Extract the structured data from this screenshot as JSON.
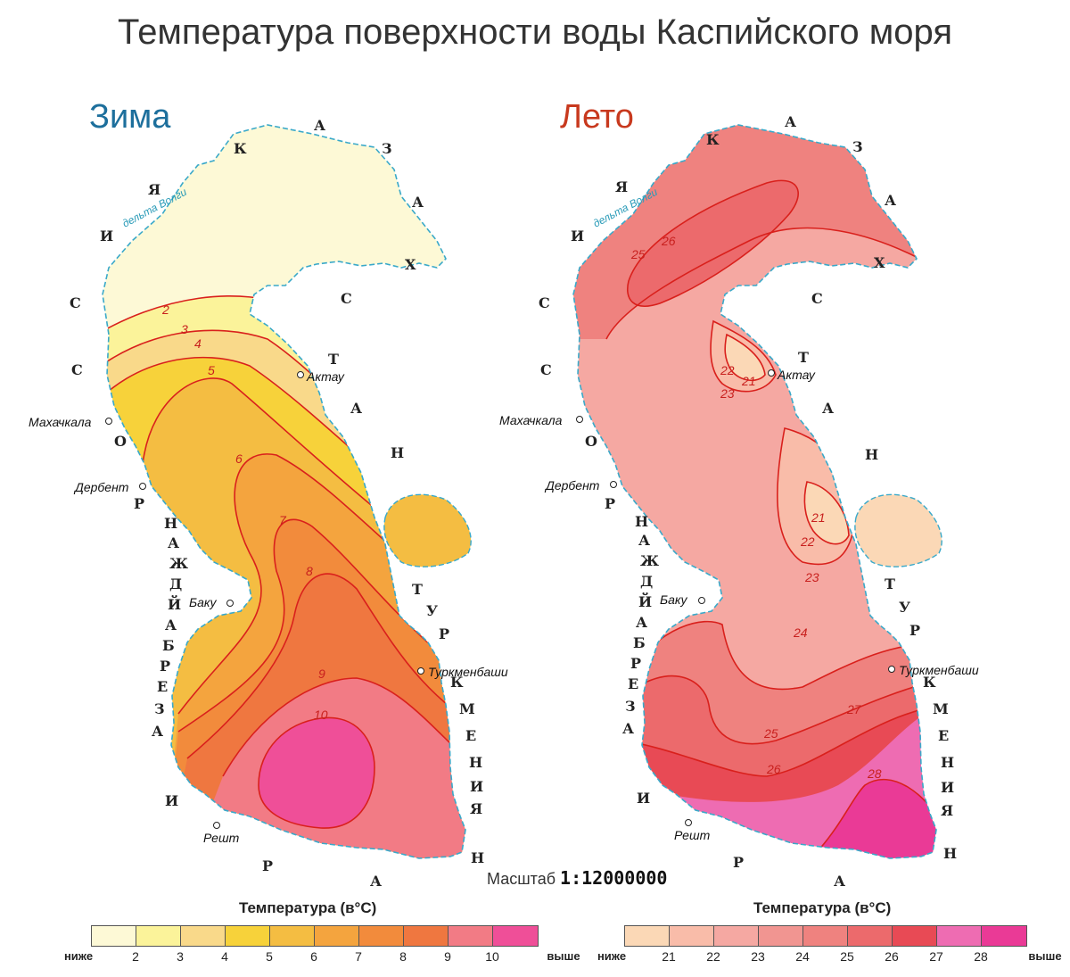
{
  "title": "Температура поверхности воды Каспийского моря",
  "winter": {
    "heading": "Зима",
    "cities": [
      "Махачкала",
      "Дербент",
      "Баку",
      "Решт",
      "Актау",
      "Туркменбаши"
    ],
    "isotherms": [
      "2",
      "3",
      "4",
      "5",
      "6",
      "7",
      "8",
      "9",
      "10"
    ]
  },
  "summer": {
    "heading": "Лето",
    "cities": [
      "Махачкала",
      "Дербент",
      "Баку",
      "Решт",
      "Актау",
      "Туркменбаши"
    ],
    "isotherms": [
      "25",
      "26",
      "22",
      "21",
      "23",
      "21",
      "22",
      "23",
      "24",
      "25",
      "26",
      "27",
      "28"
    ]
  },
  "delta_label": "дельта Волги",
  "countries": {
    "russia": [
      "Р",
      "О",
      "С",
      "С",
      "И",
      "Я"
    ],
    "kazakhstan": [
      "К",
      "А",
      "З",
      "А",
      "Х",
      "С",
      "Т",
      "А",
      "Н"
    ],
    "azerbaijan": [
      "А",
      "З",
      "Е",
      "Р",
      "Б",
      "А",
      "Й",
      "Д",
      "Ж",
      "А",
      "Н"
    ],
    "turkmenistan": [
      "Т",
      "У",
      "Р",
      "К",
      "М",
      "Е",
      "Н",
      "И",
      "Я"
    ],
    "iran": [
      "И",
      "Р",
      "А",
      "Н"
    ]
  },
  "scale": {
    "label": "Масштаб",
    "value": "1:12000000"
  },
  "legend_winter": {
    "title": "Температура (в°С)",
    "low": "ниже",
    "high": "выше",
    "ticks": [
      "2",
      "3",
      "4",
      "5",
      "6",
      "7",
      "8",
      "9",
      "10"
    ],
    "colors": [
      "#fdf9d6",
      "#fbf39a",
      "#f9d98a",
      "#f7d23a",
      "#f4bd42",
      "#f4a43e",
      "#f28b3c",
      "#ef7740",
      "#f27b85",
      "#ef4f98"
    ]
  },
  "legend_summer": {
    "title": "Температура (в°С)",
    "low": "ниже",
    "high": "выше",
    "ticks": [
      "21",
      "22",
      "23",
      "24",
      "25",
      "26",
      "27",
      "28"
    ],
    "colors": [
      "#fbd8b6",
      "#f9bca9",
      "#f5a8a2",
      "#f19591",
      "#ef827f",
      "#ec6a6c",
      "#e84a55",
      "#ee6cb2",
      "#ea3a96"
    ]
  }
}
